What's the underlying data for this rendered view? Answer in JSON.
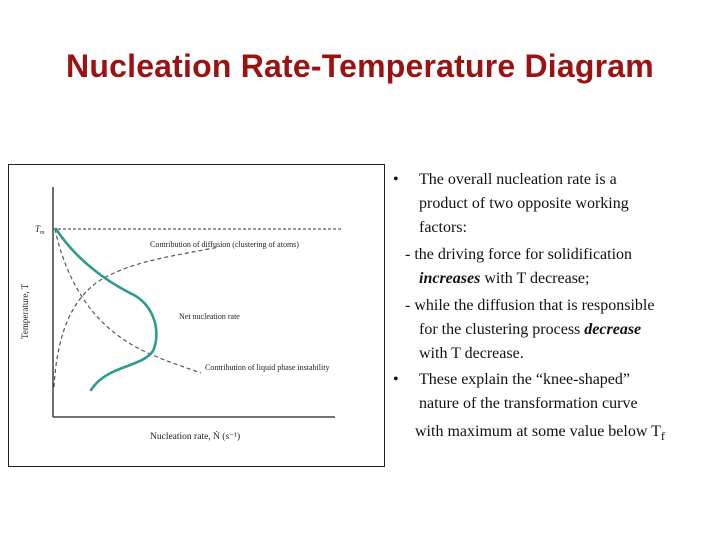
{
  "title": "Nucleation Rate-Temperature Diagram",
  "figure": {
    "y_axis_label": "Temperature, T",
    "y_tick_label": "T",
    "y_tick_sub": "m",
    "x_axis_label": "Nucleation rate, Ṅ (s⁻¹)",
    "label_diffusion": "Contribution of diffusion (clustering of atoms)",
    "label_net": "Net nucleation rate",
    "label_liquid": "Contribution of liquid phase instability",
    "colors": {
      "net_curve": "#2e9b8f",
      "dashed": "#555555",
      "title": "#9b1212"
    }
  },
  "bullets": {
    "b1_l1": "The overall nucleation rate is a",
    "b1_l2": "product of two opposite working",
    "b1_l3": "factors:",
    "s1_l1": "- the driving force for solidification",
    "s1_l2_em": "increases",
    "s1_l2_rest": " with T decrease;",
    "s2_l1": "- while the diffusion that is responsible",
    "s2_l2_a": "for the clustering process ",
    "s2_l2_em": "decrease",
    "s2_l3": "with T decrease.",
    "b2_l1": "These explain the “knee-shaped”",
    "b2_l2": "nature of the transformation curve",
    "b2_l3": "with maximum at some value below T",
    "b2_l3_sub": "f",
    "bullet_char": "•"
  }
}
